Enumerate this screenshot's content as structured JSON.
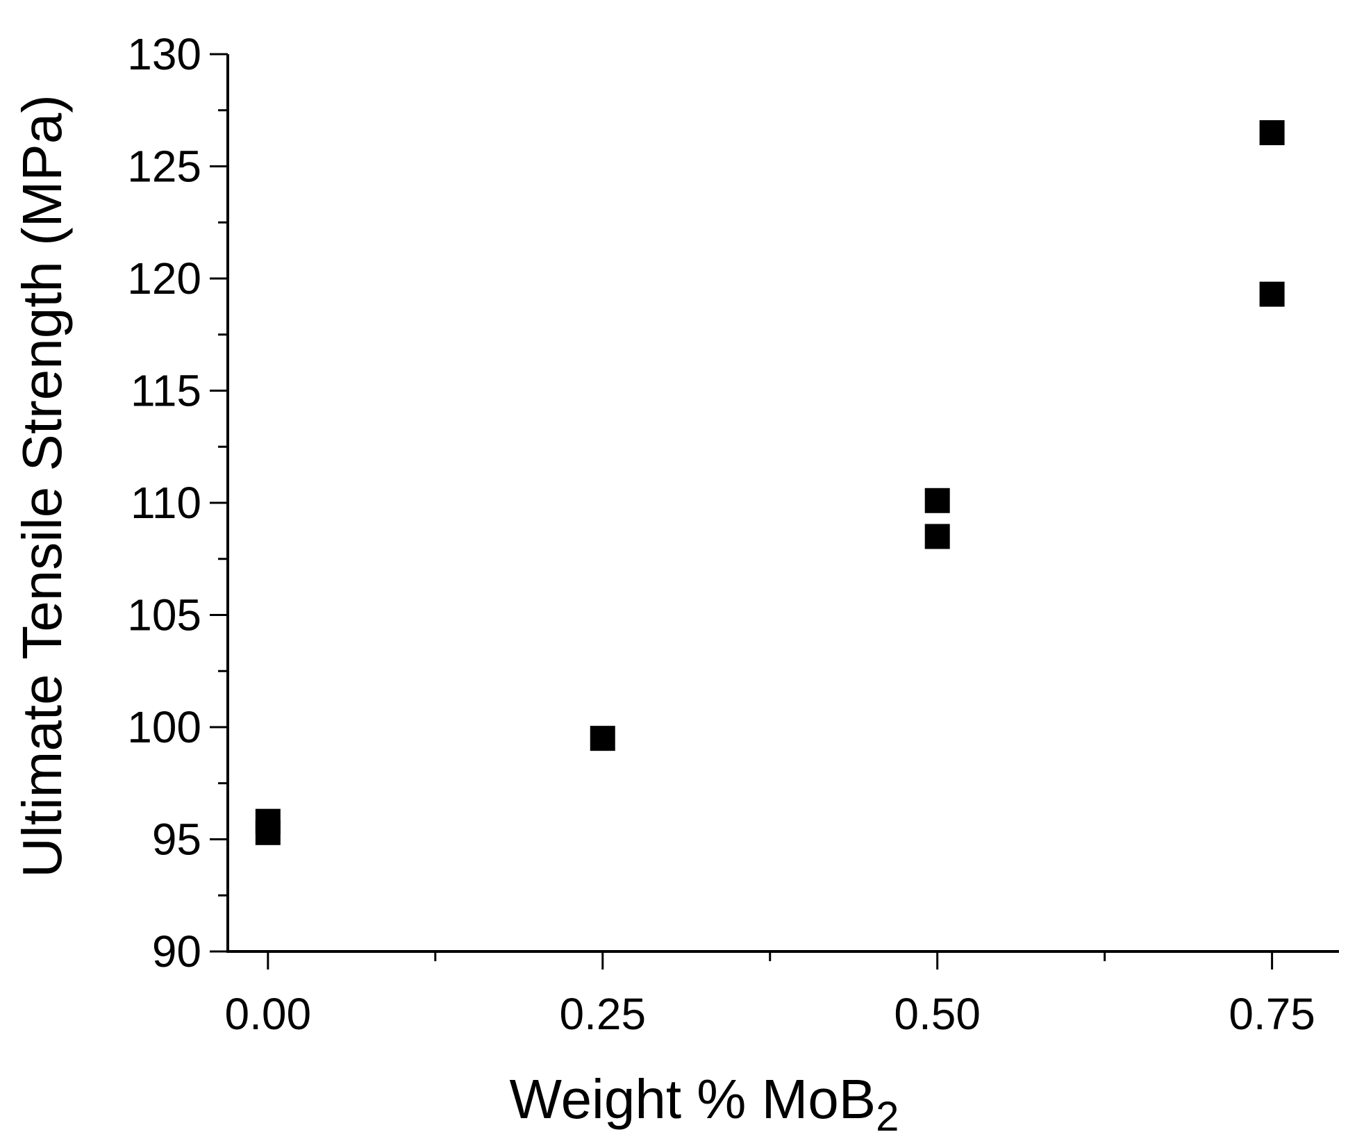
{
  "chart_data": {
    "type": "scatter",
    "title": "",
    "xlabel": {
      "main": "Weight % MoB",
      "subscript": "2"
    },
    "ylabel": "Ultimate Tensile Strength (MPa)",
    "xlim": [
      -0.03,
      0.8
    ],
    "ylim": [
      90,
      130
    ],
    "x_ticks": [
      0.0,
      0.25,
      0.5,
      0.75
    ],
    "x_tick_labels": [
      "0.00",
      "0.25",
      "0.50",
      "0.75"
    ],
    "x_minor_ticks": [
      0.125,
      0.375,
      0.625
    ],
    "y_ticks": [
      90,
      95,
      100,
      105,
      110,
      115,
      120,
      125,
      130
    ],
    "y_tick_labels": [
      "90",
      "95",
      "100",
      "105",
      "110",
      "115",
      "120",
      "125",
      "130"
    ],
    "y_minor_ticks": [
      92.5,
      97.5,
      102.5,
      107.5,
      112.5,
      117.5,
      122.5,
      127.5
    ],
    "grid": false,
    "legend": "none",
    "marker": "square",
    "marker_color": "#000000",
    "series": [
      {
        "points": [
          {
            "x": 0.0,
            "y": 95.3
          },
          {
            "x": 0.0,
            "y": 95.8
          },
          {
            "x": 0.25,
            "y": 99.5
          },
          {
            "x": 0.5,
            "y": 110.1
          },
          {
            "x": 0.5,
            "y": 108.5
          },
          {
            "x": 0.75,
            "y": 126.5
          },
          {
            "x": 0.75,
            "y": 119.3
          }
        ]
      }
    ]
  }
}
